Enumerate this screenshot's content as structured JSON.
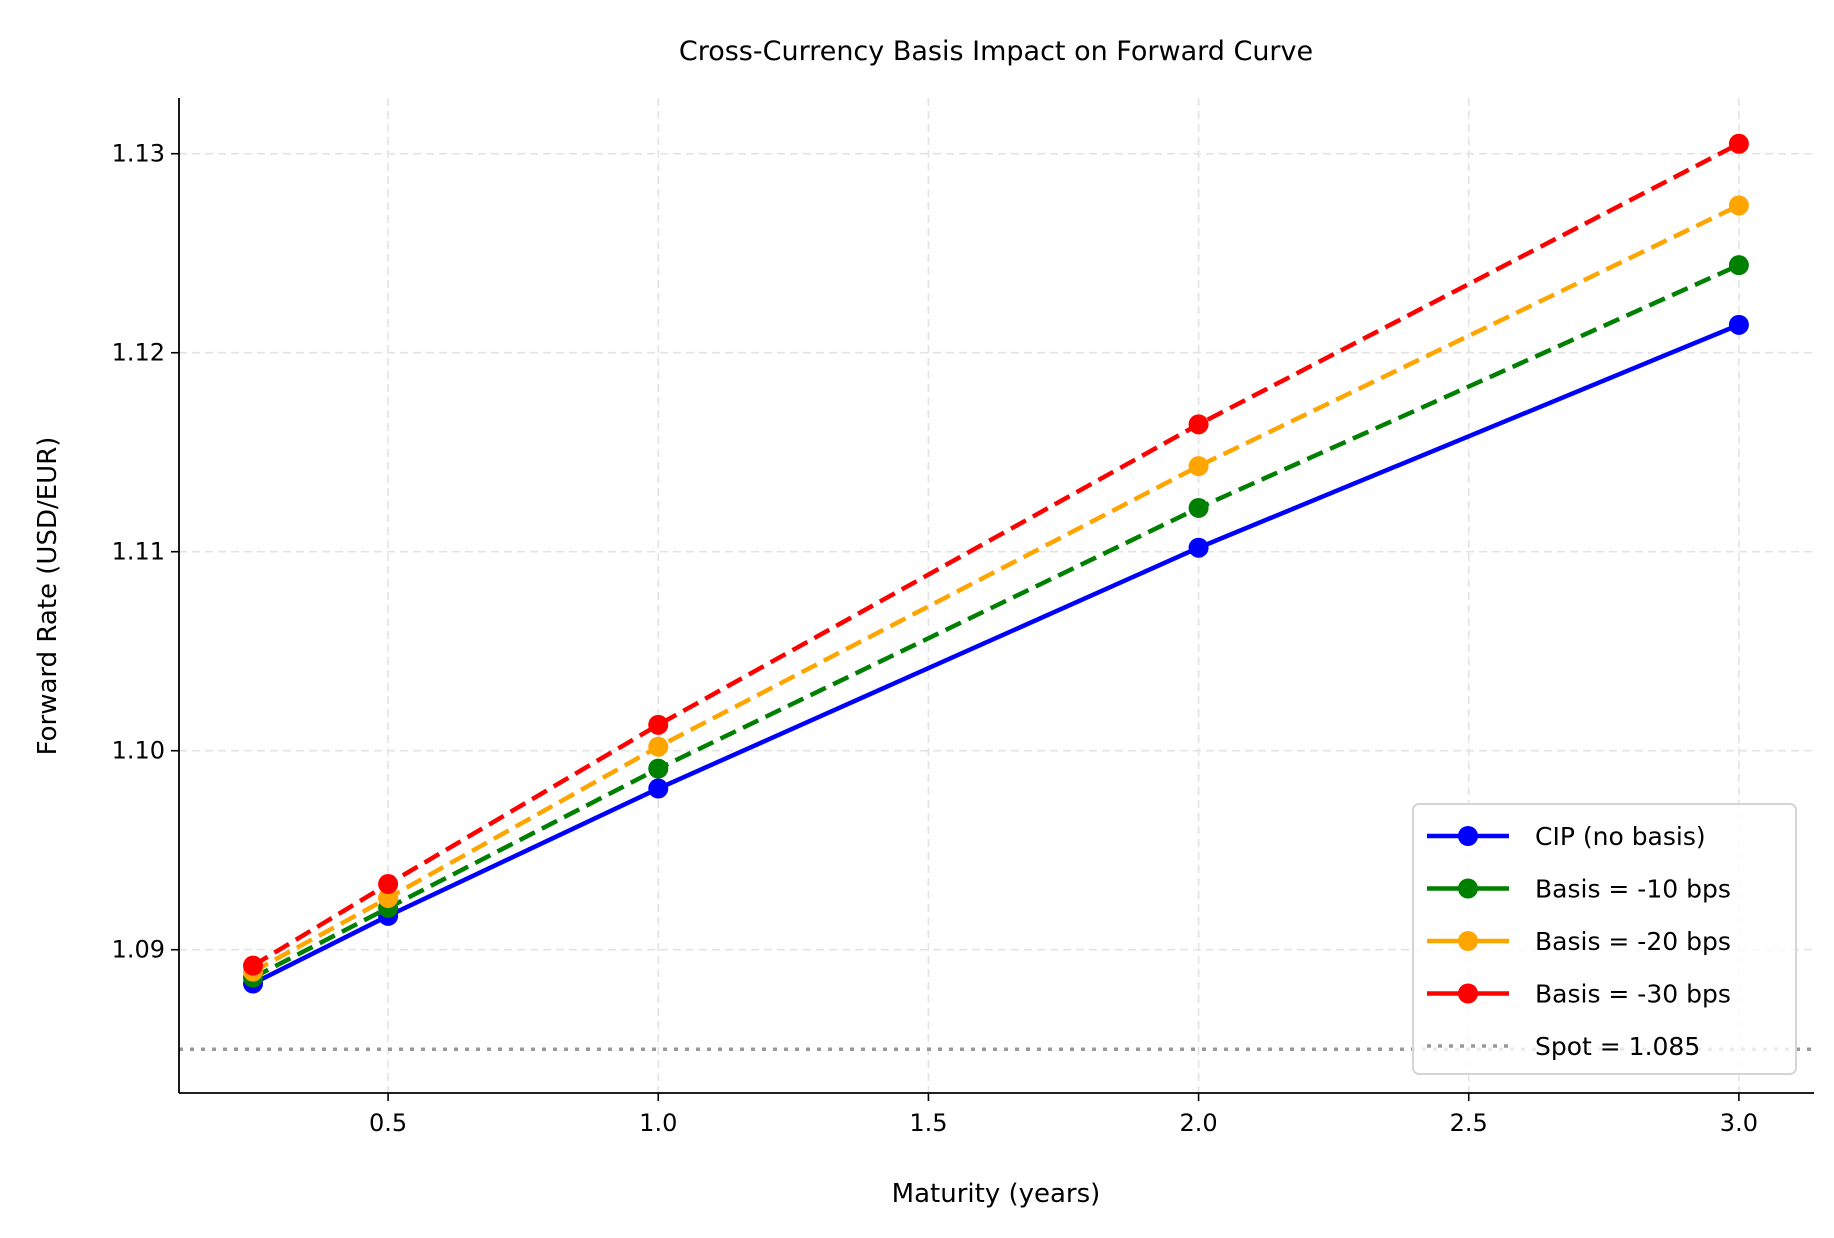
{
  "chart_data": {
    "type": "line",
    "title": "Cross-Currency Basis Impact on Forward Curve",
    "xlabel": "Maturity (years)",
    "ylabel": "Forward Rate (USD/EUR)",
    "xlim": [
      0.113,
      3.139
    ],
    "ylim": [
      1.0828,
      1.1328
    ],
    "xticks": [
      0.5,
      1.0,
      1.5,
      2.0,
      2.5,
      3.0
    ],
    "xtick_labels": [
      "0.5",
      "1.0",
      "1.5",
      "2.0",
      "2.5",
      "3.0"
    ],
    "yticks": [
      1.09,
      1.1,
      1.11,
      1.12,
      1.13
    ],
    "ytick_labels": [
      "1.09",
      "1.10",
      "1.11",
      "1.12",
      "1.13"
    ],
    "grid": true,
    "legend_position": "lower-right",
    "x": [
      0.25,
      0.5,
      1.0,
      2.0,
      3.0
    ],
    "series": [
      {
        "name": "CIP (no basis)",
        "color": "#0000ff",
        "linestyle": "solid",
        "values": [
          1.0883,
          1.0917,
          1.0981,
          1.1102,
          1.1214
        ]
      },
      {
        "name": "Basis = -10 bps",
        "color": "#008000",
        "linestyle": "dashed",
        "values": [
          1.0886,
          1.0921,
          1.0991,
          1.1122,
          1.1244
        ]
      },
      {
        "name": "Basis = -20 bps",
        "color": "#ffa500",
        "linestyle": "dashed",
        "values": [
          1.0889,
          1.0926,
          1.1002,
          1.1143,
          1.1274
        ]
      },
      {
        "name": "Basis = -30 bps",
        "color": "#ff0000",
        "linestyle": "dashed",
        "values": [
          1.0892,
          1.0933,
          1.1013,
          1.1164,
          1.1305
        ]
      }
    ],
    "reference_line": {
      "name": "Spot = 1.085",
      "value": 1.085,
      "color": "#999999",
      "linestyle": "dotted"
    }
  }
}
